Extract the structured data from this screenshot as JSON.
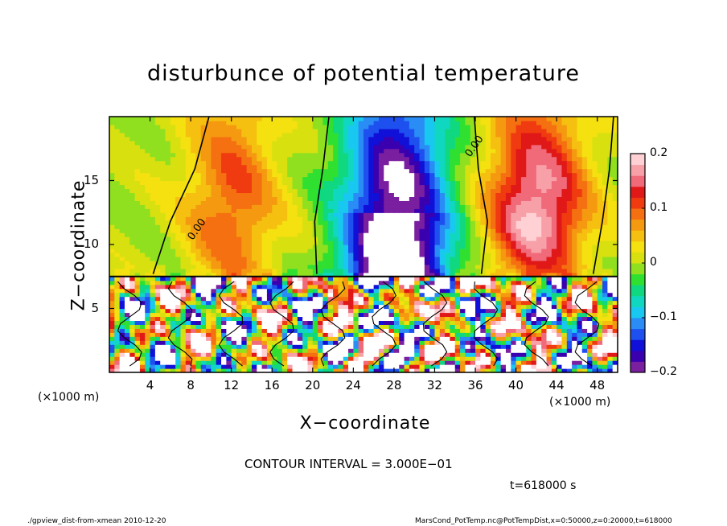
{
  "chart_data": {
    "type": "heatmap",
    "title": "disturbunce of potential temperature",
    "xlabel": "X−coordinate",
    "ylabel": "Z−coordinate",
    "x_unit": "(×1000 m)",
    "y_unit": "(×1000 m)",
    "xlim": [
      0,
      50
    ],
    "ylim": [
      0,
      20
    ],
    "xticks": [
      4,
      8,
      12,
      16,
      20,
      24,
      28,
      32,
      36,
      40,
      44,
      48
    ],
    "yticks": [
      5,
      10,
      15
    ],
    "colorbar": {
      "ticks": [
        "0.2",
        "0.1",
        "0",
        "−0.1",
        "−0.2"
      ],
      "tick_values": [
        0.2,
        0.1,
        0,
        -0.1,
        -0.2
      ],
      "range": [
        -0.2,
        0.2
      ],
      "colors": [
        "#7a1fa0",
        "#3a00b0",
        "#1010d8",
        "#1e50f0",
        "#2a8cf5",
        "#18c8f0",
        "#10d8c0",
        "#10d880",
        "#30e030",
        "#90e020",
        "#d8e010",
        "#f5e010",
        "#f5c010",
        "#f59a10",
        "#f57010",
        "#f03a10",
        "#e01818",
        "#f06a7a",
        "#f8a0a8",
        "#ffd0d4"
      ]
    },
    "contour_labels": [
      "0.00",
      "0.00"
    ],
    "contour_interval": "CONTOUR INTERVAL = 3.000E−01",
    "time": "t=618000 s",
    "description_fields": {
      "upper_layer_positive_centers_x": [
        12,
        42
      ],
      "upper_layer_negative_centers_x": [
        28
      ],
      "interface_height": 7.5
    }
  },
  "footer": {
    "left": "./gpview_dist-from-xmean  2010-12-20",
    "right": "MarsCond_PotTemp.nc@PotTempDist,x=0:50000,z=0:20000,t=618000"
  }
}
